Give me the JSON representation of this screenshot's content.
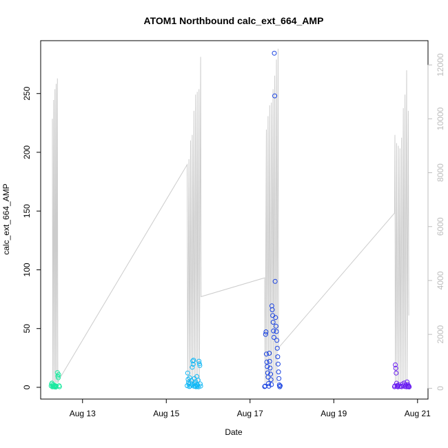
{
  "chart_data": {
    "type": "scatter",
    "title": "ATOM1 Northbound calc_ext_664_AMP",
    "xlabel": "Date",
    "ylabel": "calc_ext_664_AMP",
    "x_ticks": [
      "Aug 13",
      "Aug 15",
      "Aug 17",
      "Aug 19",
      "Aug 21"
    ],
    "x_tick_days": [
      13,
      15,
      17,
      19,
      21
    ],
    "xlim": [
      12.0,
      21.25
    ],
    "ylim": [
      -10,
      295
    ],
    "y_ticks": [
      0,
      50,
      100,
      150,
      200,
      250
    ],
    "y2lim": [
      -400,
      12900
    ],
    "y2_ticks": [
      0,
      2000,
      4000,
      6000,
      8000,
      10000,
      12000
    ],
    "grid": false,
    "colors": {
      "scatter_start": "#00ffaa",
      "scatter_mid": "#00bbff",
      "scatter_deep": "#0033dd",
      "scatter_end": "#6600ee",
      "line_series": "#cccccc",
      "right_axis": "#bdbdbd"
    },
    "scatter_series": [
      {
        "color": "#1de9a0",
        "points": [
          [
            12.25,
            1.2
          ],
          [
            12.26,
            2.8
          ],
          [
            12.27,
            3.6
          ],
          [
            12.28,
            0.4
          ],
          [
            12.29,
            1.8
          ],
          [
            12.3,
            0.6
          ],
          [
            12.31,
            2.1
          ],
          [
            12.32,
            1.0
          ],
          [
            12.33,
            0.3
          ],
          [
            12.34,
            1.5
          ],
          [
            12.35,
            0.8
          ],
          [
            12.36,
            0.2
          ],
          [
            12.37,
            1.1
          ],
          [
            12.4,
            12.5
          ],
          [
            12.41,
            9.6
          ],
          [
            12.42,
            8.2
          ],
          [
            12.43,
            10.8
          ],
          [
            12.44,
            1.4
          ],
          [
            12.45,
            0.5
          ]
        ]
      },
      {
        "color": "#12b8f5",
        "points": [
          [
            15.5,
            1.4
          ],
          [
            15.51,
            12.2
          ],
          [
            15.52,
            6.8
          ],
          [
            15.53,
            4.2
          ],
          [
            15.54,
            2.5
          ],
          [
            15.55,
            0.6
          ],
          [
            15.56,
            8.1
          ],
          [
            15.57,
            3.9
          ],
          [
            15.58,
            1.2
          ],
          [
            15.6,
            5.7
          ],
          [
            15.61,
            2.3
          ],
          [
            15.62,
            17.1
          ],
          [
            15.63,
            22.3
          ],
          [
            15.64,
            19.6
          ],
          [
            15.65,
            23.1
          ],
          [
            15.66,
            0.9
          ],
          [
            15.67,
            7.4
          ],
          [
            15.68,
            3.1
          ],
          [
            15.69,
            1.1
          ],
          [
            15.7,
            4.8
          ],
          [
            15.71,
            0.5
          ],
          [
            15.72,
            2.2
          ],
          [
            15.73,
            9.2
          ],
          [
            15.74,
            0.7
          ],
          [
            15.75,
            1.8
          ],
          [
            15.76,
            6.1
          ],
          [
            15.77,
            0.4
          ],
          [
            15.78,
            22.2
          ],
          [
            15.79,
            20.1
          ],
          [
            15.8,
            18.5
          ],
          [
            15.81,
            2.9
          ],
          [
            15.82,
            1.0
          ]
        ]
      },
      {
        "color": "#1740e0",
        "points": [
          [
            17.35,
            0.6
          ],
          [
            17.36,
            1.1
          ],
          [
            17.37,
            45.1
          ],
          [
            17.38,
            47.2
          ],
          [
            17.39,
            28.3
          ],
          [
            17.4,
            21.5
          ],
          [
            17.41,
            17.6
          ],
          [
            17.42,
            12.3
          ],
          [
            17.43,
            8.7
          ],
          [
            17.44,
            3.2
          ],
          [
            17.45,
            0.9
          ],
          [
            17.46,
            29.0
          ],
          [
            17.47,
            22.1
          ],
          [
            17.48,
            16.4
          ],
          [
            17.49,
            11.2
          ],
          [
            17.5,
            6.5
          ],
          [
            17.51,
            2.3
          ],
          [
            17.52,
            69.3
          ],
          [
            17.53,
            66.0
          ],
          [
            17.54,
            61.1
          ],
          [
            17.55,
            55.4
          ],
          [
            17.56,
            48.0
          ],
          [
            17.57,
            42.5
          ],
          [
            17.58,
            284.3
          ],
          [
            17.59,
            248.0
          ],
          [
            17.6,
            90.1
          ],
          [
            17.61,
            59.4
          ],
          [
            17.62,
            52.0
          ],
          [
            17.63,
            47.5
          ],
          [
            17.64,
            40.0
          ],
          [
            17.65,
            33.2
          ],
          [
            17.66,
            26.0
          ],
          [
            17.67,
            19.8
          ],
          [
            17.68,
            13.1
          ],
          [
            17.69,
            7.5
          ],
          [
            17.7,
            2.0
          ],
          [
            17.71,
            0.5
          ],
          [
            17.72,
            1.3
          ]
        ]
      },
      {
        "color": "#6a1ef0",
        "points": [
          [
            20.45,
            0.5
          ],
          [
            20.46,
            1.2
          ],
          [
            20.47,
            19.1
          ],
          [
            20.48,
            16.2
          ],
          [
            20.49,
            12.1
          ],
          [
            20.5,
            3.5
          ],
          [
            20.51,
            0.8
          ],
          [
            20.52,
            1.6
          ],
          [
            20.53,
            0.4
          ],
          [
            20.55,
            2.1
          ],
          [
            20.57,
            0.7
          ],
          [
            20.6,
            1.0
          ],
          [
            20.62,
            0.5
          ],
          [
            20.64,
            2.8
          ],
          [
            20.66,
            1.4
          ],
          [
            20.68,
            3.6
          ],
          [
            20.7,
            0.6
          ],
          [
            20.72,
            1.9
          ],
          [
            20.74,
            0.4
          ],
          [
            20.75,
            4.6
          ],
          [
            20.76,
            0.9
          ],
          [
            20.77,
            2.4
          ],
          [
            20.78,
            0.5
          ],
          [
            20.79,
            1.1
          ],
          [
            20.8,
            0.3
          ]
        ]
      }
    ],
    "line_series": {
      "color": "#cccccc",
      "axis": "right",
      "points": [
        [
          12.28,
          10000
        ],
        [
          12.29,
          200
        ],
        [
          12.31,
          10700
        ],
        [
          12.32,
          200
        ],
        [
          12.34,
          11100
        ],
        [
          12.35,
          200
        ],
        [
          12.37,
          11300
        ],
        [
          12.38,
          200
        ],
        [
          12.4,
          11500
        ],
        [
          12.41,
          200
        ],
        [
          12.45,
          350
        ],
        [
          15.5,
          8300
        ],
        [
          15.51,
          200
        ],
        [
          15.54,
          8500
        ],
        [
          15.55,
          200
        ],
        [
          15.58,
          9200
        ],
        [
          15.59,
          200
        ],
        [
          15.62,
          9400
        ],
        [
          15.63,
          200
        ],
        [
          15.66,
          10300
        ],
        [
          15.67,
          200
        ],
        [
          15.7,
          10900
        ],
        [
          15.71,
          200
        ],
        [
          15.74,
          11000
        ],
        [
          15.75,
          200
        ],
        [
          15.78,
          11100
        ],
        [
          15.79,
          200
        ],
        [
          15.82,
          12300
        ],
        [
          15.83,
          3400
        ],
        [
          17.35,
          4100
        ],
        [
          17.36,
          200
        ],
        [
          17.39,
          9600
        ],
        [
          17.4,
          200
        ],
        [
          17.43,
          10100
        ],
        [
          17.44,
          200
        ],
        [
          17.47,
          10500
        ],
        [
          17.48,
          200
        ],
        [
          17.51,
          10600
        ],
        [
          17.52,
          200
        ],
        [
          17.55,
          11100
        ],
        [
          17.56,
          200
        ],
        [
          17.59,
          11600
        ],
        [
          17.6,
          200
        ],
        [
          17.63,
          12200
        ],
        [
          17.64,
          200
        ],
        [
          17.67,
          12600
        ],
        [
          17.68,
          1500
        ],
        [
          20.45,
          6500
        ],
        [
          20.46,
          9400
        ],
        [
          20.47,
          200
        ],
        [
          20.5,
          9100
        ],
        [
          20.51,
          200
        ],
        [
          20.54,
          9000
        ],
        [
          20.55,
          200
        ],
        [
          20.58,
          8900
        ],
        [
          20.59,
          200
        ],
        [
          20.62,
          9300
        ],
        [
          20.63,
          200
        ],
        [
          20.66,
          10400
        ],
        [
          20.67,
          200
        ],
        [
          20.7,
          10900
        ],
        [
          20.71,
          200
        ],
        [
          20.74,
          11800
        ],
        [
          20.75,
          200
        ],
        [
          20.78,
          10300
        ],
        [
          20.79,
          2700
        ]
      ]
    }
  }
}
